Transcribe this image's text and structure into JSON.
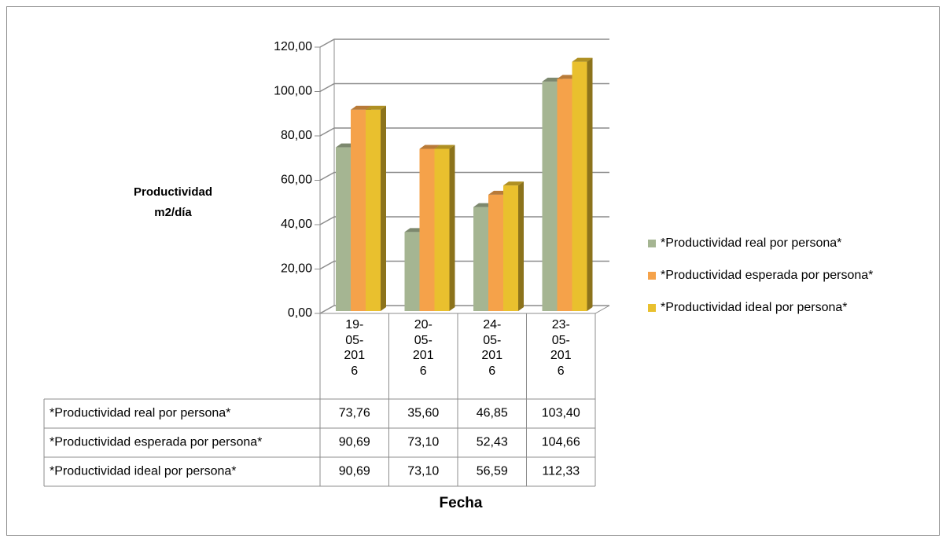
{
  "chart_data": {
    "type": "bar3d",
    "y_label": "Productividad m2/día",
    "x_label": "Fecha",
    "categories": [
      "19-05-2016",
      "20-05-2016",
      "24-05-2016",
      "23-05-2016"
    ],
    "series": [
      {
        "name": "*Productividad real por persona*",
        "color": "#a5b592",
        "values": [
          73.76,
          35.6,
          46.85,
          103.4
        ],
        "value_labels": [
          "73,76",
          "35,60",
          "46,85",
          "103,40"
        ]
      },
      {
        "name": "*Productividad esperada por persona*",
        "color": "#f5a24a",
        "values": [
          90.69,
          73.1,
          52.43,
          104.66
        ],
        "value_labels": [
          "90,69",
          "73,10",
          "52,43",
          "104,66"
        ]
      },
      {
        "name": "*Productividad ideal por persona*",
        "color": "#e9c02e",
        "values": [
          90.69,
          73.1,
          56.59,
          112.33
        ],
        "value_labels": [
          "90,69",
          "73,10",
          "56,59",
          "112,33"
        ]
      }
    ],
    "ylim": [
      0,
      120
    ],
    "yticks": [
      {
        "value": 0,
        "label": "0,00"
      },
      {
        "value": 20,
        "label": "20,00"
      },
      {
        "value": 40,
        "label": "40,00"
      },
      {
        "value": 60,
        "label": "60,00"
      },
      {
        "value": 80,
        "label": "80,00"
      },
      {
        "value": 100,
        "label": "100,00"
      },
      {
        "value": 120,
        "label": "120,00"
      }
    ],
    "legend": "right",
    "grid": true
  }
}
